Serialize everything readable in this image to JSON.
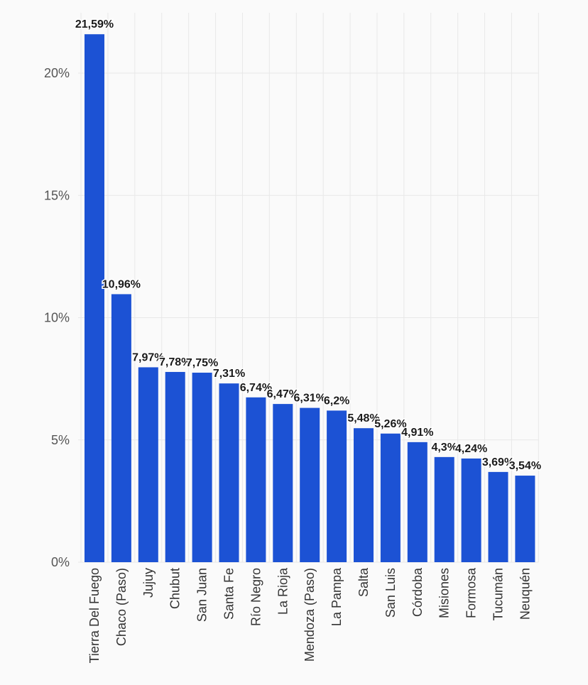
{
  "chart_data": {
    "type": "bar",
    "title": "",
    "xlabel": "",
    "ylabel": "",
    "ylim": [
      0,
      22.5
    ],
    "grid": true,
    "y_ticks": [
      0,
      5,
      10,
      15,
      20
    ],
    "y_tick_labels": [
      "0%",
      "5%",
      "10%",
      "15%",
      "20%"
    ],
    "categories": [
      "Tierra Del Fuego",
      "Chaco (Paso)",
      "Jujuy",
      "Chubut",
      "San Juan",
      "Santa Fe",
      "Río Negro",
      "La Rioja",
      "Mendoza (Paso)",
      "La Pampa",
      "Salta",
      "San Luis",
      "Córdoba",
      "Misiones",
      "Formosa",
      "Tucumán",
      "Neuquén"
    ],
    "values": [
      21.59,
      10.96,
      7.97,
      7.78,
      7.75,
      7.31,
      6.74,
      6.47,
      6.31,
      6.2,
      5.48,
      5.26,
      4.91,
      4.3,
      4.24,
      3.69,
      3.54
    ],
    "value_labels": [
      "21,59%",
      "10,96%",
      "7,97%",
      "7,78%",
      "7,75%",
      "7,31%",
      "6,74%",
      "6,47%",
      "6,31%",
      "6,2%",
      "5,48%",
      "5,26%",
      "4,91%",
      "4,3%",
      "4,24%",
      "3,69%",
      "3,54%"
    ],
    "bar_color": "#1c52d4"
  }
}
